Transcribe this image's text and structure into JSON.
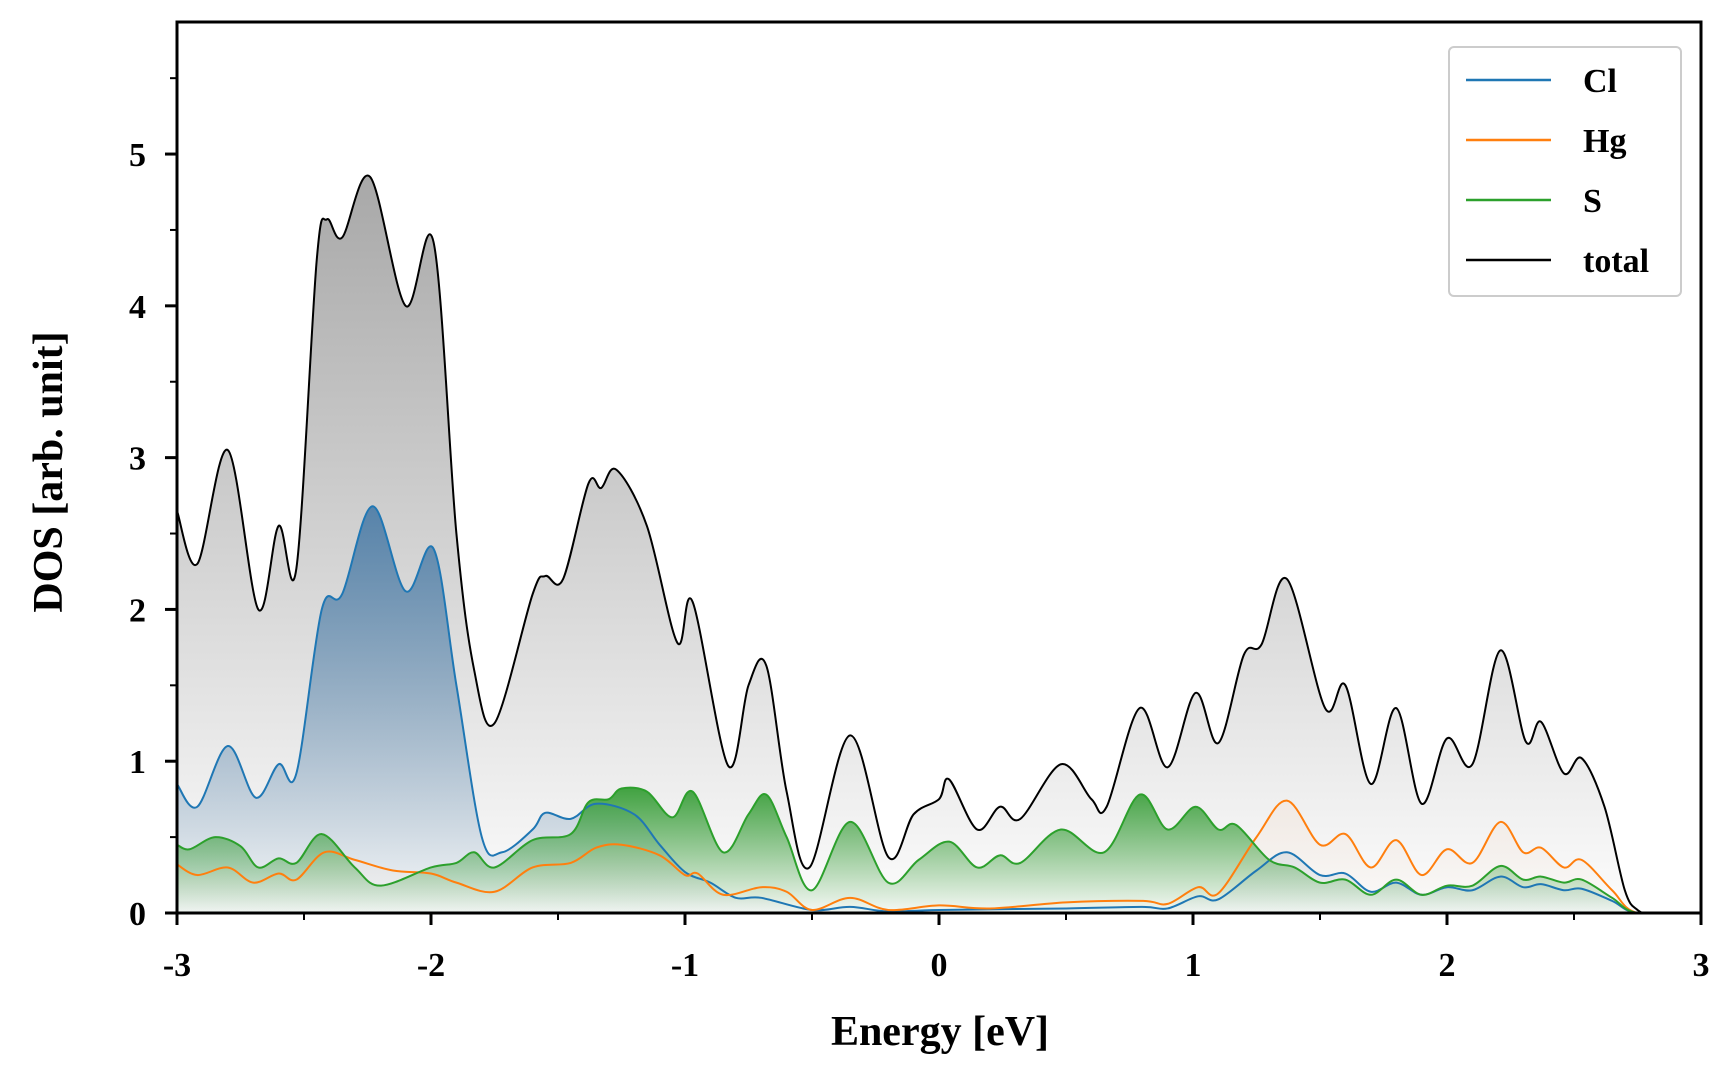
{
  "chart_data": {
    "type": "line",
    "title": "",
    "xlabel": "Energy [eV]",
    "ylabel": "DOS [arb. unit]",
    "xlim": [
      -3,
      3
    ],
    "ylim": [
      0,
      5.87
    ],
    "xticks": [
      -3,
      -2,
      -1,
      0,
      1,
      2,
      3
    ],
    "xtick_labels": [
      "-3",
      "-2",
      "-1",
      "0",
      "1",
      "2",
      "3"
    ],
    "yticks": [
      0,
      1,
      2,
      3,
      4,
      5
    ],
    "ytick_labels": [
      "0",
      "1",
      "2",
      "3",
      "4",
      "5"
    ],
    "minor_tick_step": 0.5,
    "grid": false,
    "legend_position": "top-right",
    "series": [
      {
        "name": "Cl",
        "color": "#1f77b4",
        "filled": true,
        "fill_color": "#4a7ba6",
        "x": [
          -3,
          -2.92,
          -2.8,
          -2.69,
          -2.6,
          -2.53,
          -2.43,
          -2.35,
          -2.23,
          -2.1,
          -1.99,
          -1.9,
          -1.8,
          -1.72,
          -1.6,
          -1.55,
          -1.45,
          -1.35,
          -1.2,
          -1.1,
          -1.0,
          -0.9,
          -0.8,
          -0.7,
          -0.5,
          -0.35,
          -0.2,
          0,
          0.5,
          0.8,
          0.9,
          1.02,
          1.1,
          1.25,
          1.37,
          1.5,
          1.6,
          1.7,
          1.8,
          1.9,
          2.0,
          2.1,
          2.21,
          2.3,
          2.37,
          2.46,
          2.53,
          2.65,
          2.75,
          3
        ],
        "y": [
          0.85,
          0.7,
          1.1,
          0.76,
          0.98,
          0.92,
          2.0,
          2.1,
          2.68,
          2.12,
          2.4,
          1.5,
          0.5,
          0.4,
          0.55,
          0.66,
          0.62,
          0.72,
          0.65,
          0.45,
          0.27,
          0.2,
          0.1,
          0.1,
          0.02,
          0.04,
          0.01,
          0.02,
          0.03,
          0.04,
          0.03,
          0.11,
          0.09,
          0.28,
          0.4,
          0.25,
          0.26,
          0.14,
          0.2,
          0.12,
          0.17,
          0.15,
          0.24,
          0.17,
          0.19,
          0.15,
          0.16,
          0.08,
          0,
          0
        ]
      },
      {
        "name": "Hg",
        "color": "#ff7f0e",
        "filled": true,
        "fill_color": "#f3e4d8",
        "x": [
          -3,
          -2.92,
          -2.8,
          -2.7,
          -2.6,
          -2.53,
          -2.42,
          -2.3,
          -2.15,
          -2.0,
          -1.9,
          -1.75,
          -1.6,
          -1.45,
          -1.35,
          -1.25,
          -1.1,
          -1.0,
          -0.95,
          -0.85,
          -0.7,
          -0.6,
          -0.5,
          -0.35,
          -0.2,
          0,
          0.2,
          0.5,
          0.8,
          0.9,
          1.02,
          1.1,
          1.25,
          1.37,
          1.5,
          1.6,
          1.7,
          1.8,
          1.9,
          2.0,
          2.1,
          2.21,
          2.3,
          2.37,
          2.46,
          2.53,
          2.65,
          2.75,
          3
        ],
        "y": [
          0.32,
          0.25,
          0.3,
          0.2,
          0.26,
          0.22,
          0.4,
          0.35,
          0.28,
          0.26,
          0.2,
          0.14,
          0.3,
          0.33,
          0.43,
          0.45,
          0.38,
          0.25,
          0.26,
          0.12,
          0.17,
          0.14,
          0.02,
          0.1,
          0.02,
          0.05,
          0.03,
          0.07,
          0.08,
          0.06,
          0.17,
          0.13,
          0.5,
          0.74,
          0.45,
          0.52,
          0.3,
          0.48,
          0.25,
          0.42,
          0.33,
          0.6,
          0.4,
          0.43,
          0.3,
          0.35,
          0.15,
          0,
          0
        ]
      },
      {
        "name": "S",
        "color": "#2ca02c",
        "filled": true,
        "fill_color": "#2f9a2f",
        "x": [
          -3,
          -2.95,
          -2.85,
          -2.75,
          -2.68,
          -2.6,
          -2.53,
          -2.43,
          -2.3,
          -2.2,
          -2.0,
          -1.9,
          -1.83,
          -1.75,
          -1.6,
          -1.45,
          -1.38,
          -1.3,
          -1.25,
          -1.15,
          -1.05,
          -0.97,
          -0.85,
          -0.75,
          -0.68,
          -0.6,
          -0.5,
          -0.35,
          -0.2,
          -0.08,
          0.04,
          0.15,
          0.24,
          0.32,
          0.48,
          0.65,
          0.79,
          0.9,
          1.01,
          1.1,
          1.17,
          1.3,
          1.4,
          1.5,
          1.6,
          1.7,
          1.8,
          1.9,
          2.0,
          2.1,
          2.21,
          2.3,
          2.37,
          2.46,
          2.53,
          2.65,
          2.75,
          3
        ],
        "y": [
          0.45,
          0.42,
          0.5,
          0.44,
          0.3,
          0.36,
          0.33,
          0.52,
          0.3,
          0.18,
          0.3,
          0.33,
          0.4,
          0.3,
          0.48,
          0.52,
          0.73,
          0.75,
          0.82,
          0.8,
          0.63,
          0.8,
          0.4,
          0.65,
          0.78,
          0.5,
          0.15,
          0.6,
          0.2,
          0.35,
          0.47,
          0.3,
          0.38,
          0.33,
          0.55,
          0.4,
          0.78,
          0.55,
          0.7,
          0.55,
          0.58,
          0.35,
          0.3,
          0.2,
          0.22,
          0.12,
          0.22,
          0.12,
          0.18,
          0.18,
          0.31,
          0.22,
          0.24,
          0.2,
          0.22,
          0.1,
          0,
          0
        ]
      },
      {
        "name": "total",
        "color": "#000000",
        "filled": true,
        "fill_color": "#a8a8a8",
        "x": [
          -3,
          -2.92,
          -2.8,
          -2.68,
          -2.6,
          -2.53,
          -2.45,
          -2.41,
          -2.35,
          -2.24,
          -2.1,
          -1.99,
          -1.9,
          -1.83,
          -1.75,
          -1.6,
          -1.55,
          -1.48,
          -1.38,
          -1.33,
          -1.27,
          -1.15,
          -1.03,
          -0.97,
          -0.83,
          -0.75,
          -0.68,
          -0.6,
          -0.51,
          -0.35,
          -0.2,
          -0.1,
          0,
          0.04,
          0.15,
          0.24,
          0.32,
          0.48,
          0.6,
          0.66,
          0.79,
          0.9,
          1.01,
          1.1,
          1.2,
          1.27,
          1.37,
          1.52,
          1.6,
          1.7,
          1.8,
          1.9,
          2.0,
          2.1,
          2.21,
          2.31,
          2.37,
          2.46,
          2.53,
          2.62,
          2.7,
          2.75,
          2.8,
          3
        ],
        "y": [
          2.65,
          2.3,
          3.05,
          2.0,
          2.55,
          2.27,
          4.3,
          4.57,
          4.45,
          4.85,
          4.0,
          4.42,
          2.5,
          1.6,
          1.25,
          2.1,
          2.22,
          2.2,
          2.83,
          2.8,
          2.92,
          2.55,
          1.78,
          2.05,
          0.97,
          1.5,
          1.63,
          0.8,
          0.3,
          1.17,
          0.37,
          0.65,
          0.75,
          0.88,
          0.55,
          0.7,
          0.62,
          0.98,
          0.75,
          0.7,
          1.35,
          0.96,
          1.45,
          1.12,
          1.7,
          1.77,
          2.2,
          1.35,
          1.5,
          0.85,
          1.35,
          0.72,
          1.15,
          0.98,
          1.73,
          1.13,
          1.26,
          0.92,
          1.02,
          0.7,
          0.15,
          0.02,
          0,
          0
        ]
      }
    ]
  }
}
